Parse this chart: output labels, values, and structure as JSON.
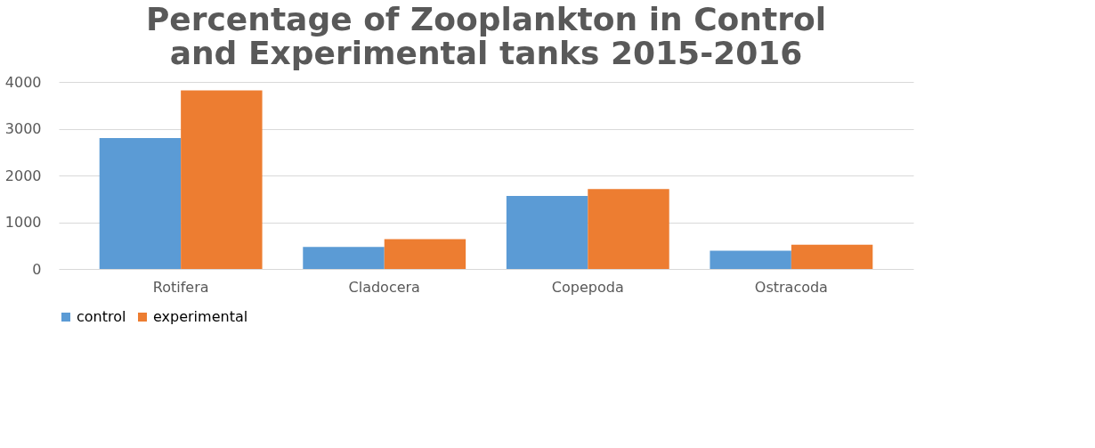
{
  "chart_data": {
    "type": "bar",
    "title": [
      "Percentage of Zooplankton in Control",
      "and Experimental tanks 2015-2016"
    ],
    "categories": [
      "Rotifera",
      "Cladocera",
      "Copepoda",
      "Ostracoda"
    ],
    "series": [
      {
        "name": "control",
        "color": "#5b9bd5",
        "values": [
          2800,
          470,
          1560,
          390
        ]
      },
      {
        "name": "experimental",
        "color": "#ed7d31",
        "values": [
          3820,
          640,
          1710,
          520
        ]
      }
    ],
    "ylim": [
      0,
      4000
    ],
    "yticks": [
      0,
      1000,
      2000,
      3000,
      4000
    ],
    "grid": "y",
    "legend": "bottom"
  }
}
